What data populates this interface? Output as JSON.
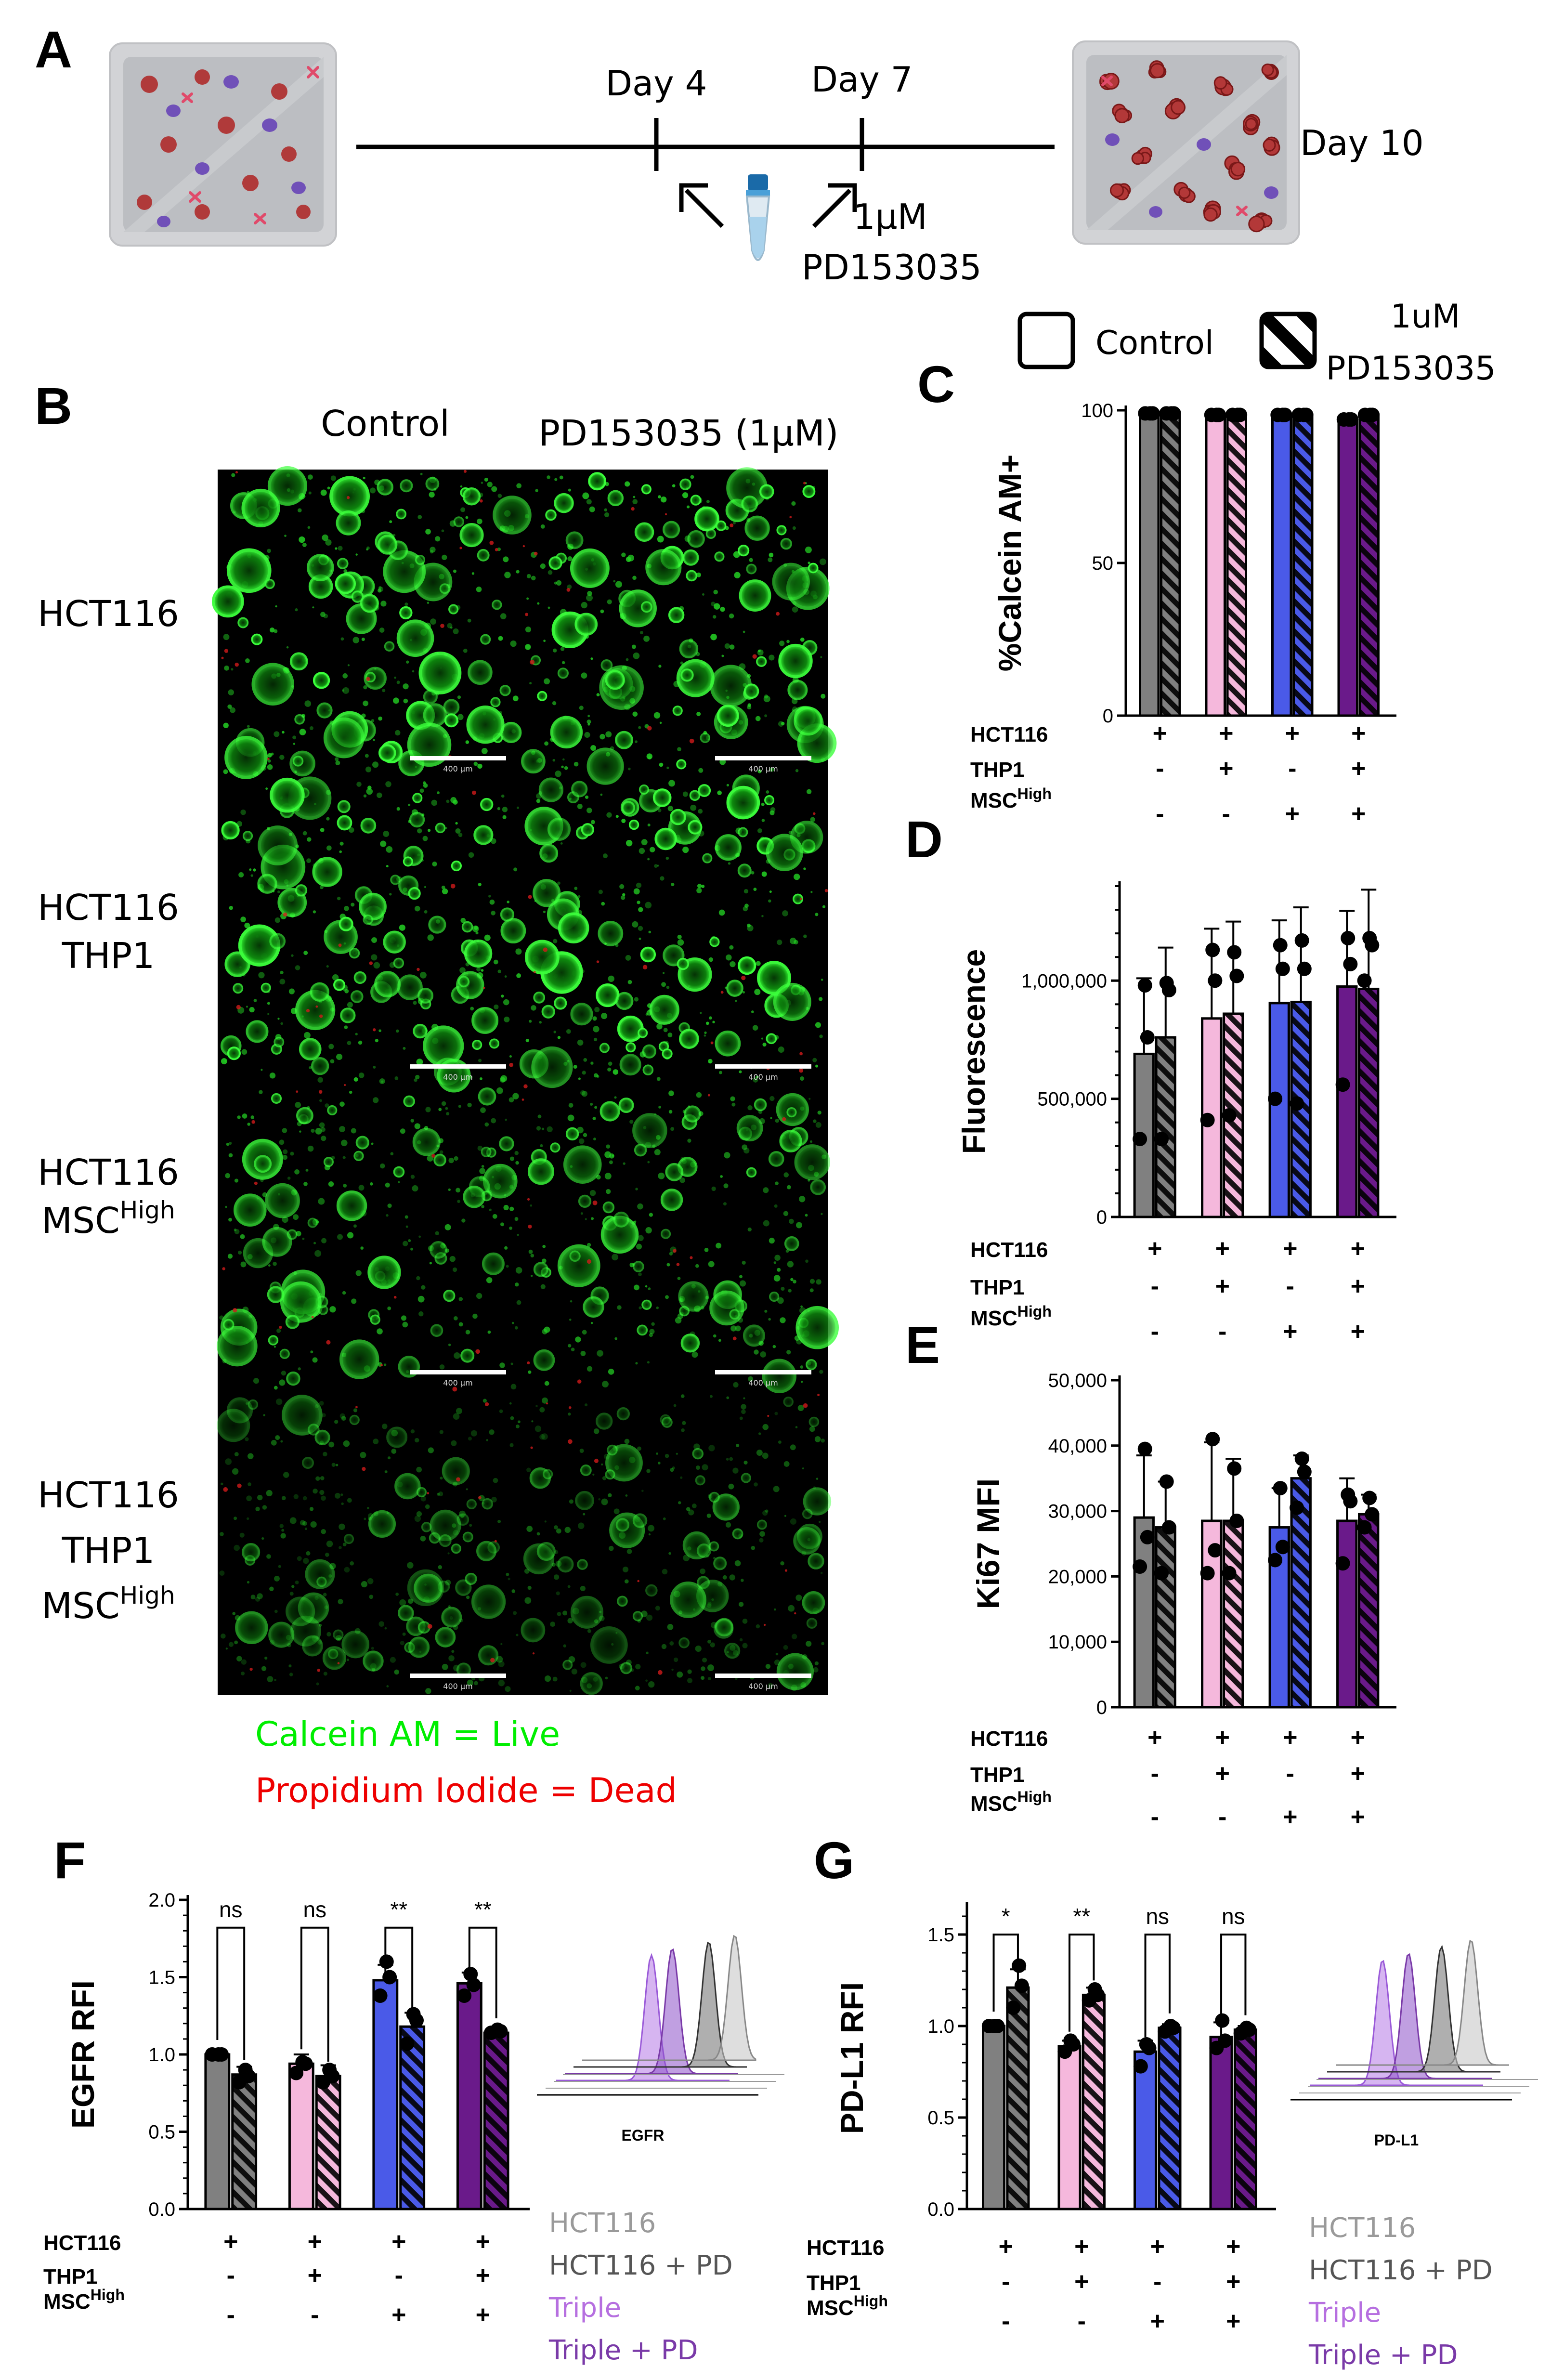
{
  "panels": {
    "A": {
      "label": "A",
      "timeline": {
        "day4": "Day 4",
        "day7": "Day 7",
        "day10": "Day 10",
        "dose": "1μM",
        "drug": "PD153035"
      }
    },
    "B": {
      "label": "B",
      "columns": [
        "Control",
        "PD153035 (1μM)"
      ],
      "rows": [
        [
          "HCT116"
        ],
        [
          "HCT116",
          "THP1"
        ],
        [
          "HCT116",
          "MSC|High"
        ],
        [
          "HCT116",
          "THP1",
          "MSC|High"
        ]
      ],
      "scale_bar": "400 μm",
      "caption": {
        "live": "Calcein AM = Live",
        "dead": "Propidium Iodide = Dead",
        "live_color": "#00ee00",
        "dead_color": "#ee0000"
      }
    },
    "C": {
      "label": "C"
    },
    "D": {
      "label": "D"
    },
    "E": {
      "label": "E"
    },
    "F": {
      "label": "F",
      "hist_legend": [
        "HCT116",
        "HCT116 + PD",
        "Triple",
        "Triple + PD"
      ],
      "hist_xlabel": "EGFR"
    },
    "G": {
      "label": "G",
      "hist_legend": [
        "HCT116",
        "HCT116 + PD",
        "Triple",
        "Triple + PD"
      ],
      "hist_xlabel": "PD-L1"
    }
  },
  "legend": {
    "control": "Control",
    "treated_line1": "1uM",
    "treated_line2": "PD153035"
  },
  "group_colors": [
    "#808080",
    "#f5b8dc",
    "#4a5ae8",
    "#6a1a8a"
  ],
  "hist_legend_colors": [
    "#9a9a9a",
    "#555555",
    "#b66fe0",
    "#7a3aa8"
  ],
  "groups": {
    "row_labels": [
      "HCT116",
      "THP1",
      "MSC|High"
    ],
    "signs": [
      [
        "+",
        "+",
        "+",
        "+"
      ],
      [
        "-",
        "+",
        "-",
        "+"
      ],
      [
        "-",
        "-",
        "+",
        "+"
      ]
    ]
  },
  "chart_data": [
    {
      "id": "C",
      "type": "bar",
      "ylabel": "%Calcein AM+",
      "ylim": [
        0,
        100
      ],
      "yticks": [
        "0",
        "50",
        "100"
      ],
      "categories": [
        "HCT116",
        "HCT116+THP1",
        "HCT116+MSC High",
        "HCT116+THP1+MSC High"
      ],
      "series": [
        {
          "name": "Control",
          "values": [
            99,
            98.5,
            98.5,
            97
          ]
        },
        {
          "name": "1uM PD153035",
          "values": [
            99,
            98.5,
            98.5,
            98.5
          ]
        }
      ],
      "points": [
        [
          [
            99,
            99,
            99
          ],
          [
            99,
            99,
            99
          ]
        ],
        [
          [
            98.5,
            98.5,
            98.5
          ],
          [
            98.5,
            98.5,
            98.5
          ]
        ],
        [
          [
            98.5,
            98.5,
            98.5
          ],
          [
            98.5,
            98.5,
            98.5
          ]
        ],
        [
          [
            97,
            97,
            97
          ],
          [
            98.5,
            98.5,
            98.5
          ]
        ]
      ],
      "errors": [
        [
          0,
          0
        ],
        [
          0,
          0
        ],
        [
          0,
          0
        ],
        [
          0,
          0
        ]
      ]
    },
    {
      "id": "D",
      "type": "bar",
      "ylabel": "Fluorescence",
      "ylim": [
        0,
        1400000
      ],
      "yticks": [
        "0",
        "500,000",
        "1,000,000"
      ],
      "categories": [
        "HCT116",
        "HCT116+THP1",
        "HCT116+MSC High",
        "HCT116+THP1+MSC High"
      ],
      "series": [
        {
          "name": "Control",
          "values": [
            690000,
            840000,
            905000,
            975000
          ]
        },
        {
          "name": "1uM PD153035",
          "values": [
            760000,
            860000,
            910000,
            965000
          ]
        }
      ],
      "points": [
        [
          [
            330000,
            760000,
            980000
          ],
          [
            330000,
            960000,
            990000
          ]
        ],
        [
          [
            410000,
            1000000,
            1130000
          ],
          [
            430000,
            1020000,
            1120000
          ]
        ],
        [
          [
            500000,
            1050000,
            1150000
          ],
          [
            480000,
            1050000,
            1170000
          ]
        ],
        [
          [
            560000,
            1070000,
            1180000
          ],
          [
            1000000,
            1150000,
            1180000
          ]
        ]
      ],
      "errors": [
        [
          320000,
          380000
        ],
        [
          380000,
          390000
        ],
        [
          350000,
          400000
        ],
        [
          320000,
          420000
        ]
      ]
    },
    {
      "id": "E",
      "type": "bar",
      "ylabel": "Ki67 MFI",
      "ylim": [
        0,
        50000
      ],
      "yticks": [
        "0",
        "10,000",
        "20,000",
        "30,000",
        "40,000",
        "50,000"
      ],
      "categories": [
        "HCT116",
        "HCT116+THP1",
        "HCT116+MSC High",
        "HCT116+THP1+MSC High"
      ],
      "series": [
        {
          "name": "Control",
          "values": [
            29000,
            28500,
            27500,
            28500
          ]
        },
        {
          "name": "1uM PD153035",
          "values": [
            27500,
            28500,
            35000,
            29500
          ]
        }
      ],
      "points": [
        [
          [
            21500,
            26000,
            39500
          ],
          [
            20500,
            27500,
            34500
          ]
        ],
        [
          [
            20500,
            24000,
            41000
          ],
          [
            20500,
            28500,
            36500
          ]
        ],
        [
          [
            22500,
            24500,
            33500
          ],
          [
            30500,
            36000,
            38000
          ]
        ],
        [
          [
            22000,
            31500,
            32500
          ],
          [
            27500,
            29500,
            32000
          ]
        ]
      ],
      "errors": [
        [
          9500,
          7000
        ],
        [
          12000,
          9500
        ],
        [
          6000,
          3500
        ],
        [
          6500,
          3000
        ]
      ]
    },
    {
      "id": "F",
      "type": "bar",
      "ylabel": "EGFR RFI",
      "ylim": [
        0,
        2.0
      ],
      "yticks": [
        "0.0",
        "0.5",
        "1.0",
        "1.5",
        "2.0"
      ],
      "categories": [
        "HCT116",
        "HCT116+THP1",
        "HCT116+MSC High",
        "HCT116+THP1+MSC High"
      ],
      "series": [
        {
          "name": "Control",
          "values": [
            1.0,
            0.94,
            1.48,
            1.46
          ]
        },
        {
          "name": "1uM PD153035",
          "values": [
            0.87,
            0.86,
            1.18,
            1.14
          ]
        }
      ],
      "points": [
        [
          [
            1.0,
            1.0,
            1.0
          ],
          [
            0.82,
            0.86,
            0.9
          ]
        ],
        [
          [
            0.88,
            0.94,
            0.95
          ],
          [
            0.82,
            0.86,
            0.9
          ]
        ],
        [
          [
            1.38,
            1.5,
            1.6
          ],
          [
            1.07,
            1.22,
            1.26
          ]
        ],
        [
          [
            1.38,
            1.45,
            1.52
          ],
          [
            1.14,
            1.15,
            1.16
          ]
        ]
      ],
      "errors": [
        [
          0,
          0.05
        ],
        [
          0.06,
          0.07
        ],
        [
          0.1,
          0.09
        ],
        [
          0.07,
          0.02
        ]
      ],
      "significance": [
        "ns",
        "ns",
        "**",
        "**"
      ]
    },
    {
      "id": "G",
      "type": "bar",
      "ylabel": "PD-L1 RFI",
      "ylim": [
        0,
        1.65
      ],
      "yticks": [
        "0.0",
        "0.5",
        "1.0",
        "1.5"
      ],
      "categories": [
        "HCT116",
        "HCT116+THP1",
        "HCT116+MSC High",
        "HCT116+THP1+MSC High"
      ],
      "series": [
        {
          "name": "Control",
          "values": [
            1.0,
            0.89,
            0.86,
            0.94
          ]
        },
        {
          "name": "1uM PD153035",
          "values": [
            1.21,
            1.17,
            0.99,
            0.98
          ]
        }
      ],
      "points": [
        [
          [
            1.0,
            1.0,
            1.0
          ],
          [
            1.1,
            1.22,
            1.33
          ]
        ],
        [
          [
            0.86,
            0.9,
            0.92
          ],
          [
            1.14,
            1.17,
            1.2
          ]
        ],
        [
          [
            0.78,
            0.88,
            0.9
          ],
          [
            0.97,
            0.99,
            1.0
          ]
        ],
        [
          [
            0.88,
            0.92,
            1.03
          ],
          [
            0.96,
            0.98,
            0.99
          ]
        ]
      ],
      "errors": [
        [
          0,
          0.1
        ],
        [
          0.03,
          0.04
        ],
        [
          0.06,
          0.02
        ],
        [
          0.08,
          0.02
        ]
      ],
      "significance": [
        "*",
        "**",
        "ns",
        "ns"
      ]
    }
  ]
}
